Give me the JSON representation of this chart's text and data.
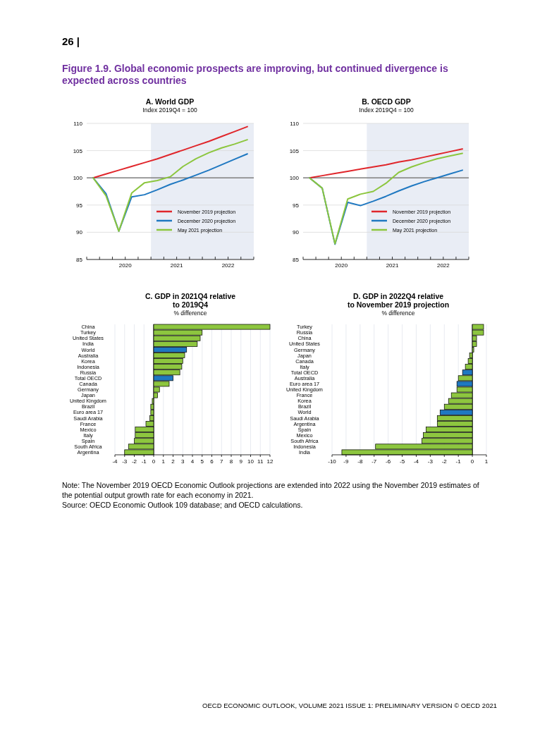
{
  "chart_data": [
    {
      "type": "other",
      "title": "Figure 1.9. Global economic prospects are improving, but continued divergence is expected across countries",
      "annotations": [
        "26 |"
      ]
    },
    {
      "type": "line",
      "title": "A. World GDP",
      "subtitle": "Index 2019Q4 = 100",
      "x": [
        2019.875,
        2020.125,
        2020.375,
        2020.625,
        2020.875,
        2021.125,
        2021.375,
        2021.625,
        2021.875,
        2022.125,
        2022.375,
        2022.625,
        2022.875
      ],
      "series": [
        {
          "name": "November 2019 projection",
          "color": "#e0262b",
          "values": [
            100,
            100.7,
            101.4,
            102.1,
            102.8,
            103.5,
            104.3,
            105.1,
            105.9,
            106.7,
            107.6,
            108.5,
            109.4
          ]
        },
        {
          "name": "December 2020 projection",
          "color": "#1f78c1",
          "values": [
            100,
            97.1,
            90.2,
            96.5,
            96.9,
            97.8,
            98.8,
            99.6,
            100.5,
            101.4,
            102.4,
            103.4,
            104.4
          ]
        },
        {
          "name": "May 2021 projection",
          "color": "#8cc63e",
          "values": [
            100,
            96.7,
            90.2,
            97.2,
            99.1,
            99.5,
            100.2,
            102.1,
            103.5,
            104.6,
            105.5,
            106.2,
            107.0
          ]
        }
      ],
      "xlim": [
        2019.75,
        2023.0
      ],
      "xticks": [
        {
          "value": 2019.75,
          "label": null
        },
        {
          "value": 2020.0,
          "label": null
        },
        {
          "value": 2020.25,
          "label": null
        },
        {
          "value": 2020.5,
          "label": "2020"
        },
        {
          "value": 2020.75,
          "label": null
        },
        {
          "value": 2021.0,
          "label": null
        },
        {
          "value": 2021.25,
          "label": null
        },
        {
          "value": 2021.5,
          "label": "2021"
        },
        {
          "value": 2021.75,
          "label": null
        },
        {
          "value": 2022.0,
          "label": null
        },
        {
          "value": 2022.25,
          "label": null
        },
        {
          "value": 2022.5,
          "label": "2022"
        },
        {
          "value": 2022.75,
          "label": null
        },
        {
          "value": 2023.0,
          "label": null
        }
      ],
      "ylim": [
        85,
        110
      ],
      "yticks": [
        85,
        90,
        95,
        100,
        105,
        110
      ],
      "grid": "y",
      "legend": "bottom right",
      "bands": [
        {
          "axis": "x",
          "from": 2021.0,
          "to": 2023.0,
          "color": "#e9edf5"
        }
      ],
      "ref_lines": [
        {
          "axis": "y",
          "value": 100,
          "color": "#808080"
        }
      ]
    },
    {
      "type": "line",
      "title": "B. OECD GDP",
      "subtitle": "Index 2019Q4 = 100",
      "x": [
        2019.875,
        2020.125,
        2020.375,
        2020.625,
        2020.875,
        2021.125,
        2021.375,
        2021.625,
        2021.875,
        2022.125,
        2022.375,
        2022.625,
        2022.875
      ],
      "series": [
        {
          "name": "November 2019 projection",
          "color": "#e0262b",
          "values": [
            100,
            100.4,
            100.8,
            101.2,
            101.6,
            102.0,
            102.4,
            102.9,
            103.3,
            103.8,
            104.3,
            104.8,
            105.3
          ]
        },
        {
          "name": "December 2020 projection",
          "color": "#1f78c1",
          "values": [
            100,
            98.1,
            87.8,
            95.5,
            94.9,
            95.7,
            96.6,
            97.6,
            98.5,
            99.3,
            100.0,
            100.7,
            101.4
          ]
        },
        {
          "name": "May 2021 projection",
          "color": "#8cc63e",
          "values": [
            100,
            98.1,
            87.9,
            96.1,
            97.0,
            97.5,
            99.0,
            101.0,
            102.0,
            102.8,
            103.5,
            104.0,
            104.5
          ]
        }
      ],
      "xlim": [
        2019.75,
        2023.0
      ],
      "xticks": [
        {
          "value": 2019.75,
          "label": null
        },
        {
          "value": 2020.0,
          "label": null
        },
        {
          "value": 2020.25,
          "label": null
        },
        {
          "value": 2020.5,
          "label": "2020"
        },
        {
          "value": 2020.75,
          "label": null
        },
        {
          "value": 2021.0,
          "label": null
        },
        {
          "value": 2021.25,
          "label": null
        },
        {
          "value": 2021.5,
          "label": "2021"
        },
        {
          "value": 2021.75,
          "label": null
        },
        {
          "value": 2022.0,
          "label": null
        },
        {
          "value": 2022.25,
          "label": null
        },
        {
          "value": 2022.5,
          "label": "2022"
        },
        {
          "value": 2022.75,
          "label": null
        },
        {
          "value": 2023.0,
          "label": null
        }
      ],
      "ylim": [
        85,
        110
      ],
      "yticks": [
        85,
        90,
        95,
        100,
        105,
        110
      ],
      "grid": "y",
      "legend": "bottom right",
      "bands": [
        {
          "axis": "x",
          "from": 2021.0,
          "to": 2023.0,
          "color": "#e9edf5"
        }
      ],
      "ref_lines": [
        {
          "axis": "y",
          "value": 100,
          "color": "#808080"
        }
      ]
    },
    {
      "type": "bar",
      "orientation": "horizontal",
      "title": "C. GDP in 2021Q4 relative to 2019Q4",
      "subtitle": "% difference",
      "categories": [
        "China",
        "Turkey",
        "United States",
        "India",
        "World",
        "Australia",
        "Korea",
        "Indonesia",
        "Russia",
        "Total OECD",
        "Canada",
        "Germany",
        "Japan",
        "United Kingdom",
        "Brazil",
        "Euro area 17",
        "Saudi Arabia",
        "France",
        "Mexico",
        "Italy",
        "Spain",
        "South Africa",
        "Argentina"
      ],
      "values": [
        12.0,
        5.0,
        4.8,
        4.5,
        3.4,
        3.2,
        3.0,
        2.9,
        2.7,
        2.0,
        1.6,
        0.6,
        0.4,
        -0.15,
        -0.3,
        -0.3,
        -0.4,
        -0.8,
        -1.9,
        -1.9,
        -2.0,
        -2.6,
        -3.0
      ],
      "colors": [
        "#8dc63f",
        "#8dc63f",
        "#8dc63f",
        "#8dc63f",
        "#1f78c1",
        "#8dc63f",
        "#8dc63f",
        "#8dc63f",
        "#8dc63f",
        "#1f78c1",
        "#8dc63f",
        "#8dc63f",
        "#8dc63f",
        "#8dc63f",
        "#8dc63f",
        "#8dc63f",
        "#8dc63f",
        "#8dc63f",
        "#8dc63f",
        "#8dc63f",
        "#8dc63f",
        "#8dc63f",
        "#8dc63f"
      ],
      "xlim": [
        -4,
        12
      ],
      "xticks": [
        -4,
        -3,
        -2,
        -1,
        0,
        1,
        2,
        3,
        4,
        5,
        6,
        7,
        8,
        9,
        10,
        11,
        12
      ],
      "grid": "x"
    },
    {
      "type": "bar",
      "orientation": "horizontal",
      "title": "D. GDP in 2022Q4 relative to November 2019 projection",
      "subtitle": "% difference",
      "categories": [
        "Turkey",
        "Russia",
        "China",
        "United States",
        "Germany",
        "Japan",
        "Canada",
        "Italy",
        "Total OECD",
        "Australia",
        "Euro area 17",
        "United Kingdom",
        "France",
        "Korea",
        "Brazil",
        "World",
        "Saudi Arabia",
        "Argentina",
        "Spain",
        "Mexico",
        "South Africa",
        "Indonesia",
        "India"
      ],
      "values": [
        0.8,
        0.8,
        0.3,
        0.3,
        0.1,
        -0.2,
        -0.3,
        -0.5,
        -0.7,
        -1.0,
        -1.1,
        -1.1,
        -1.5,
        -1.7,
        -2.0,
        -2.3,
        -2.5,
        -2.5,
        -3.3,
        -3.5,
        -3.6,
        -6.9,
        -9.3
      ],
      "colors": [
        "#8dc63f",
        "#8dc63f",
        "#8dc63f",
        "#8dc63f",
        "#8dc63f",
        "#8dc63f",
        "#8dc63f",
        "#8dc63f",
        "#1f78c1",
        "#8dc63f",
        "#1f78c1",
        "#8dc63f",
        "#8dc63f",
        "#8dc63f",
        "#8dc63f",
        "#1f78c1",
        "#8dc63f",
        "#8dc63f",
        "#8dc63f",
        "#8dc63f",
        "#8dc63f",
        "#8dc63f",
        "#8dc63f"
      ],
      "xlim": [
        -10,
        1
      ],
      "xticks": [
        -10,
        -9,
        -8,
        -7,
        -6,
        -5,
        -4,
        -3,
        -2,
        -1,
        0,
        1
      ],
      "grid": "x"
    },
    {
      "type": "other",
      "annotations": [
        "Note: The November 2019 OECD Economic Outlook projections are extended into 2022 using the November 2019 estimates of the potential output growth rate for each economy in 2021.",
        "Source: OECD Economic Outlook 109 database; and OECD calculations.",
        "OECD ECONOMIC OUTLOOK, VOLUME 2021 ISSUE 1: PRELIMINARY VERSION © OECD 2021"
      ]
    }
  ]
}
